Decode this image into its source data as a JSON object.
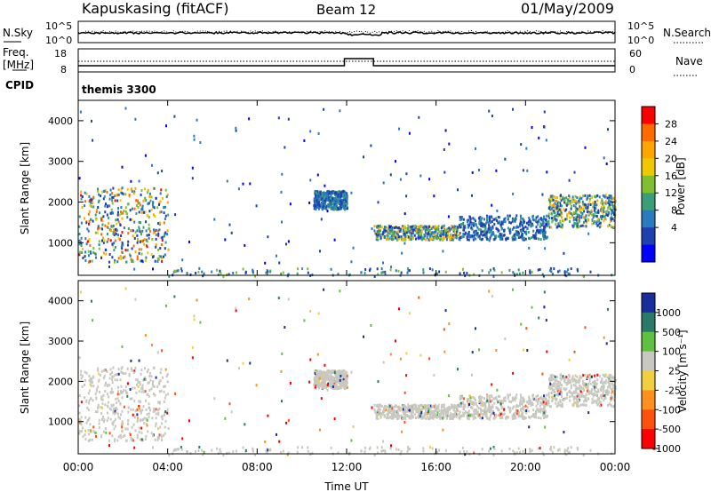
{
  "header": {
    "station": "Kapuskasing (fitACF)",
    "beam": "Beam 12",
    "date": "01/May/2009"
  },
  "noise_panel": {
    "left_label": "N.Sky",
    "right_label": "N.Search",
    "left_ticks": [
      "10^5",
      "10^0"
    ],
    "right_ticks": [
      "10^5",
      "10^0"
    ]
  },
  "freq_panel": {
    "left_label_1": "Freq.",
    "left_label_2": "[MHz]",
    "right_label": "Nave",
    "left_ticks": [
      "18",
      "8"
    ],
    "right_ticks": [
      "60",
      "0"
    ]
  },
  "cpid": {
    "label": "CPID",
    "value": "themis 3300"
  },
  "axes": {
    "ylabel": "Slant Range [km]",
    "xlabel": "Time UT",
    "y_ticks": [
      "4000",
      "3000",
      "2000",
      "1000"
    ],
    "x_ticks": [
      "00:00",
      "04:00",
      "08:00",
      "12:00",
      "16:00",
      "20:00",
      "00:00"
    ]
  },
  "power_scale": {
    "label": "Power [dB]",
    "ticks": [
      "28",
      "24",
      "20",
      "16",
      "12",
      "8",
      "4"
    ],
    "colors": [
      "#ff0000",
      "#ff6a00",
      "#ffa500",
      "#f0c800",
      "#80c030",
      "#3a9e78",
      "#2a7abf",
      "#1e3fb0",
      "#0000ff"
    ]
  },
  "velocity_scale": {
    "label": "Velocity [m s⁻¹]",
    "ticks": [
      "1000",
      "500",
      "100",
      "25",
      "-25",
      "-100",
      "-500",
      "-1000"
    ],
    "colors": [
      "#1a2d9c",
      "#2a7a6a",
      "#60c040",
      "#c8c8c0",
      "#f0d040",
      "#ff9020",
      "#ff5010",
      "#ff0000"
    ]
  },
  "chart_data": {
    "type": "heatmap",
    "x_unit": "hours UT",
    "xlim": [
      0,
      24
    ],
    "ylim": [
      200,
      4500
    ],
    "panels": [
      "power",
      "velocity"
    ],
    "scatter_regions": [
      {
        "name": "near-range echoes 00-04 UT",
        "x": [
          0.0,
          4.0
        ],
        "y": [
          550,
          2400
        ],
        "power_db": [
          4,
          30
        ],
        "velocity_ms": [
          -25,
          25
        ]
      },
      {
        "name": "echoes 10.5-12 UT",
        "x": [
          10.5,
          12.0
        ],
        "y": [
          1850,
          2300
        ],
        "power_db": [
          4,
          12
        ],
        "velocity_ms": [
          -25,
          25
        ]
      },
      {
        "name": "echoes 13-17 UT",
        "x": [
          13.2,
          17.0
        ],
        "y": [
          1100,
          1450
        ],
        "power_db": [
          4,
          24
        ],
        "velocity_ms": [
          -25,
          25
        ]
      },
      {
        "name": "echoes 17-21 UT",
        "x": [
          17.0,
          21.0
        ],
        "y": [
          1100,
          1700
        ],
        "power_db": [
          4,
          12
        ],
        "velocity_ms": [
          -25,
          25
        ]
      },
      {
        "name": "echoes 21-24 UT",
        "x": [
          21.0,
          24.0
        ],
        "y": [
          1400,
          2200
        ],
        "power_db": [
          4,
          24
        ],
        "velocity_ms": [
          -25,
          25
        ]
      },
      {
        "name": "ground-scatter band",
        "x": [
          4.0,
          24.0
        ],
        "y": [
          200,
          400
        ],
        "power_db": [
          4,
          16
        ],
        "velocity_ms": [
          -25,
          25
        ]
      }
    ],
    "frequency_mhz": {
      "x": [
        0,
        11.9,
        11.9,
        13.2,
        13.2,
        24
      ],
      "y": [
        10,
        10,
        14,
        14,
        10,
        10
      ]
    }
  }
}
